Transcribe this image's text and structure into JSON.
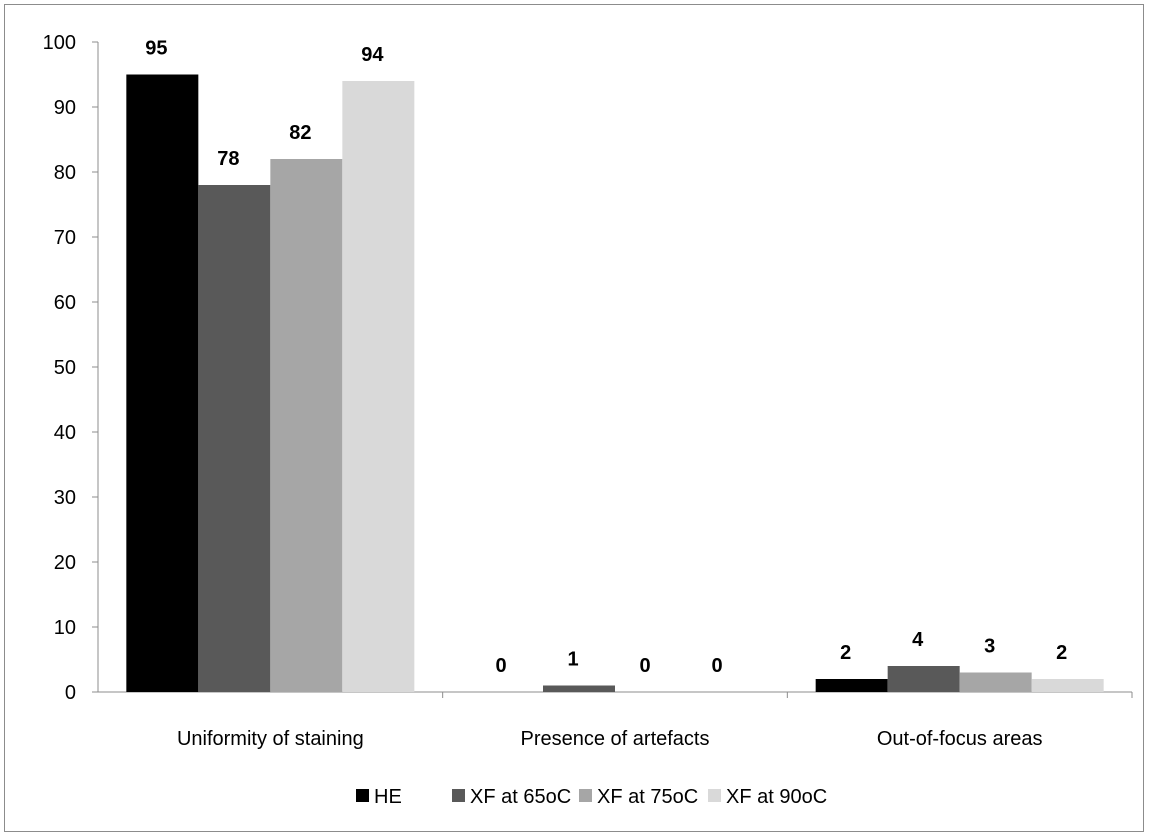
{
  "chart_data": {
    "type": "bar",
    "categories": [
      "Uniformity of staining",
      "Presence of artefacts",
      "Out-of-focus areas"
    ],
    "series": [
      {
        "name": "HE",
        "values": [
          95,
          0,
          2
        ],
        "color": "#000000"
      },
      {
        "name": "XF at 65oC",
        "values": [
          78,
          1,
          4
        ],
        "color": "#595959"
      },
      {
        "name": "XF at 75oC",
        "values": [
          82,
          0,
          3
        ],
        "color": "#a6a6a6"
      },
      {
        "name": "XF at 90oC",
        "values": [
          94,
          0,
          2
        ],
        "color": "#d9d9d9"
      }
    ],
    "ylim": [
      0,
      100
    ],
    "yticks": [
      0,
      10,
      20,
      30,
      40,
      50,
      60,
      70,
      80,
      90,
      100
    ],
    "grid": false,
    "legend_position": "bottom",
    "data_labels": true
  }
}
